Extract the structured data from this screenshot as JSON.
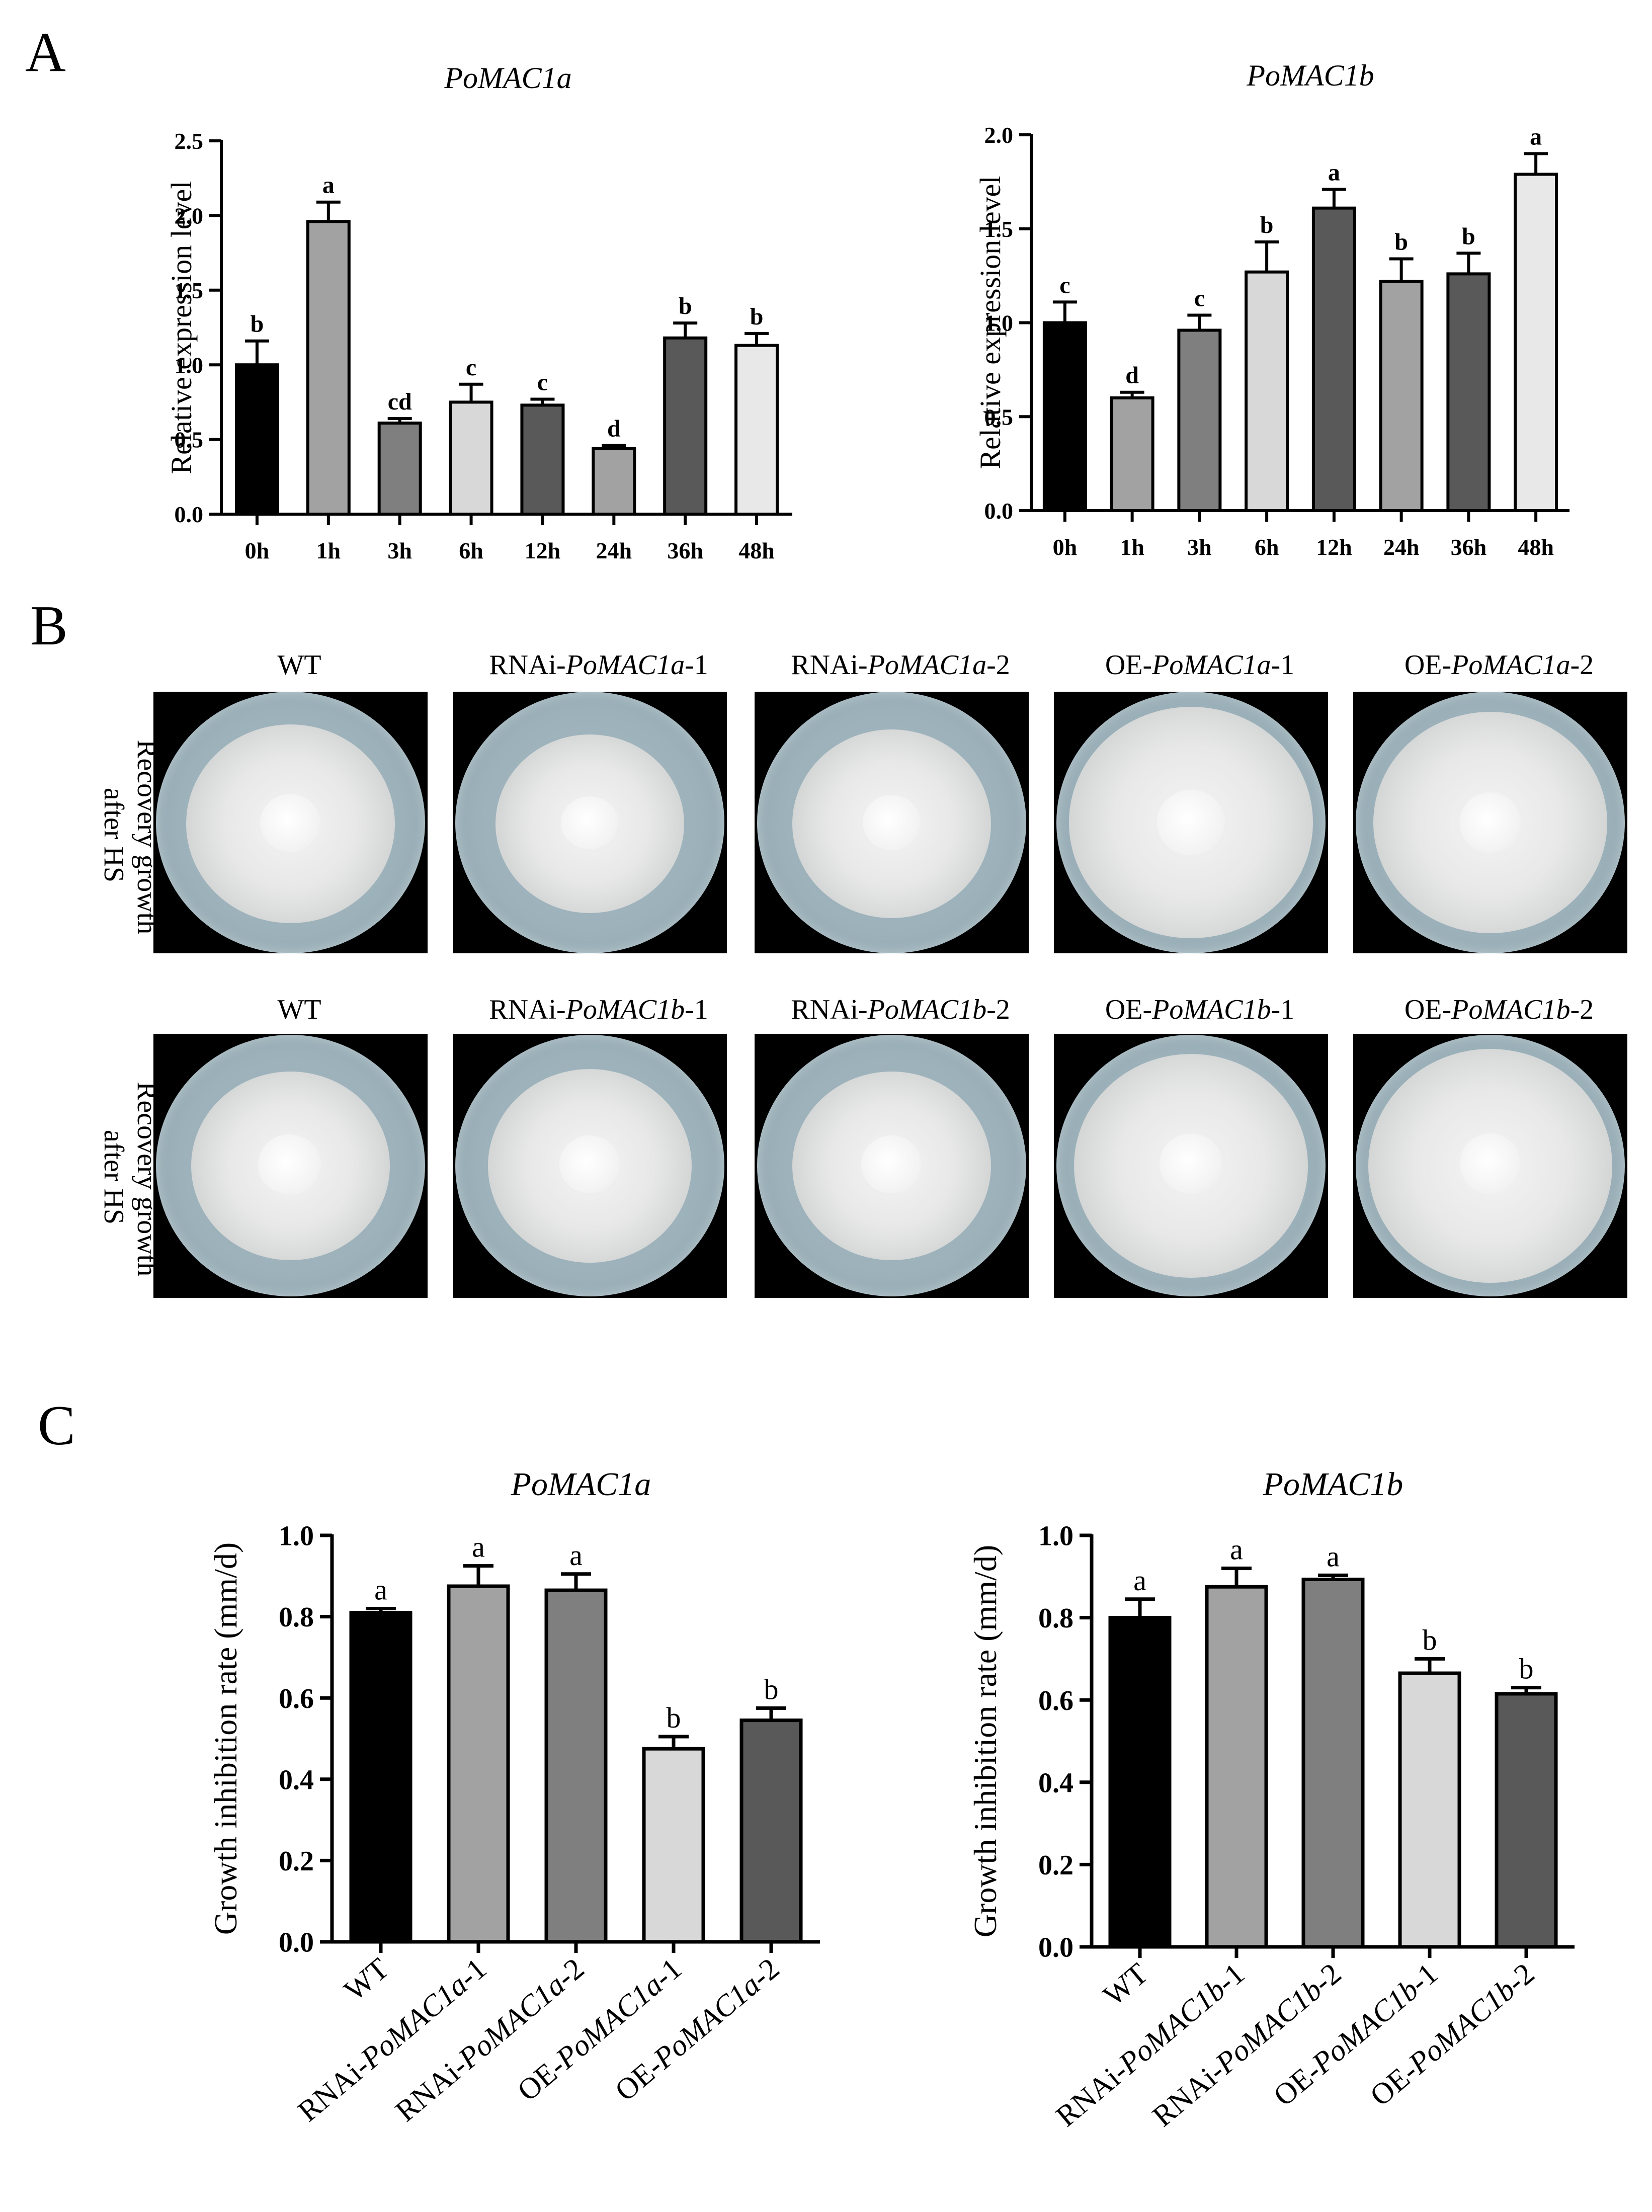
{
  "panels": {
    "a_label": "A",
    "b_label": "B",
    "c_label": "C"
  },
  "panel_b": {
    "row_label_line1": "Recovery growth",
    "row_label_line2": "after HS",
    "row1_titles": [
      {
        "prefix": "WT",
        "gene": "",
        "suffix": ""
      },
      {
        "prefix": "RNAi-",
        "gene": "PoMAC1a",
        "suffix": "-1"
      },
      {
        "prefix": "RNAi-",
        "gene": "PoMAC1a",
        "suffix": "-2"
      },
      {
        "prefix": "OE-",
        "gene": "PoMAC1a",
        "suffix": "-1"
      },
      {
        "prefix": "OE-",
        "gene": "PoMAC1a",
        "suffix": "-2"
      }
    ],
    "row2_titles": [
      {
        "prefix": "WT",
        "gene": "",
        "suffix": ""
      },
      {
        "prefix": "RNAi-",
        "gene": "PoMAC1b",
        "suffix": "-1"
      },
      {
        "prefix": "RNAi-",
        "gene": "PoMAC1b",
        "suffix": "-2"
      },
      {
        "prefix": "OE-",
        "gene": "PoMAC1b",
        "suffix": "-1"
      },
      {
        "prefix": "OE-",
        "gene": "PoMAC1b",
        "suffix": "-2"
      }
    ]
  },
  "chart_data": [
    {
      "id": "A1",
      "type": "bar",
      "title": "PoMAC1a",
      "xlabel": "",
      "ylabel": "Relative expression level",
      "ylim": [
        0,
        2.5
      ],
      "yticks": [
        0.0,
        0.5,
        1.0,
        1.5,
        2.0,
        2.5
      ],
      "ytick_labels": [
        "0.0",
        "0.5",
        "1.0",
        "1.5",
        "2.0",
        "2.5"
      ],
      "categories": [
        "0h",
        "1h",
        "3h",
        "6h",
        "12h",
        "24h",
        "36h",
        "48h"
      ],
      "values": [
        1.0,
        1.96,
        0.61,
        0.75,
        0.73,
        0.44,
        1.18,
        1.13
      ],
      "errors": [
        0.16,
        0.13,
        0.03,
        0.12,
        0.04,
        0.02,
        0.1,
        0.08
      ],
      "significance": [
        "b",
        "a",
        "cd",
        "c",
        "c",
        "d",
        "b",
        "b"
      ],
      "colors": [
        "#000000",
        "#a2a2a2",
        "#7f7f7f",
        "#d8d8d8",
        "#595959",
        "#a2a2a2",
        "#595959",
        "#e8e8e8"
      ],
      "rotate_xlabels": false
    },
    {
      "id": "A2",
      "type": "bar",
      "title": "PoMAC1b",
      "xlabel": "",
      "ylabel": "Relative expression level",
      "ylim": [
        0,
        2.0
      ],
      "yticks": [
        0.0,
        0.5,
        1.0,
        1.5,
        2.0
      ],
      "ytick_labels": [
        "0.0",
        "0.5",
        "1.0",
        "1.5",
        "2.0"
      ],
      "categories": [
        "0h",
        "1h",
        "3h",
        "6h",
        "12h",
        "24h",
        "36h",
        "48h"
      ],
      "values": [
        1.0,
        0.6,
        0.96,
        1.27,
        1.61,
        1.22,
        1.26,
        1.79
      ],
      "errors": [
        0.11,
        0.03,
        0.08,
        0.16,
        0.1,
        0.12,
        0.11,
        0.11
      ],
      "significance": [
        "c",
        "d",
        "c",
        "b",
        "a",
        "b",
        "b",
        "a"
      ],
      "colors": [
        "#000000",
        "#a2a2a2",
        "#7f7f7f",
        "#d8d8d8",
        "#595959",
        "#a2a2a2",
        "#595959",
        "#e8e8e8"
      ],
      "rotate_xlabels": false
    },
    {
      "id": "C1",
      "type": "bar",
      "title": "PoMAC1a",
      "xlabel": "",
      "ylabel": "Growth inhibition rate (mm/d)",
      "ylim": [
        0,
        1.0
      ],
      "yticks": [
        0.0,
        0.2,
        0.4,
        0.6,
        0.8,
        1.0
      ],
      "ytick_labels": [
        "0.0",
        "0.2",
        "0.4",
        "0.6",
        "0.8",
        "1.0"
      ],
      "categories": [
        "WT",
        "RNAi-PoMAC1a-1",
        "RNAi-PoMAC1a-2",
        "OE-PoMAC1a-1",
        "OE-PoMAC1a-2"
      ],
      "values": [
        0.81,
        0.875,
        0.865,
        0.475,
        0.545
      ],
      "errors": [
        0.01,
        0.05,
        0.04,
        0.03,
        0.03
      ],
      "significance": [
        "a",
        "a",
        "a",
        "b",
        "b"
      ],
      "colors": [
        "#000000",
        "#a2a2a2",
        "#7f7f7f",
        "#d8d8d8",
        "#595959"
      ],
      "rotate_xlabels": true
    },
    {
      "id": "C2",
      "type": "bar",
      "title": "PoMAC1b",
      "xlabel": "",
      "ylabel": "Growth inhibition rate (mm/d)",
      "ylim": [
        0,
        1.0
      ],
      "yticks": [
        0.0,
        0.2,
        0.4,
        0.6,
        0.8,
        1.0
      ],
      "ytick_labels": [
        "0.0",
        "0.2",
        "0.4",
        "0.6",
        "0.8",
        "1.0"
      ],
      "categories": [
        "WT",
        "RNAi-PoMAC1b-1",
        "RNAi-PoMAC1b-2",
        "OE-PoMAC1b-1",
        "OE-PoMAC1b-2"
      ],
      "values": [
        0.8,
        0.875,
        0.893,
        0.665,
        0.615
      ],
      "errors": [
        0.045,
        0.045,
        0.01,
        0.035,
        0.015
      ],
      "significance": [
        "a",
        "a",
        "a",
        "b",
        "b"
      ],
      "colors": [
        "#000000",
        "#a2a2a2",
        "#7f7f7f",
        "#d8d8d8",
        "#595959"
      ],
      "rotate_xlabels": true
    }
  ]
}
